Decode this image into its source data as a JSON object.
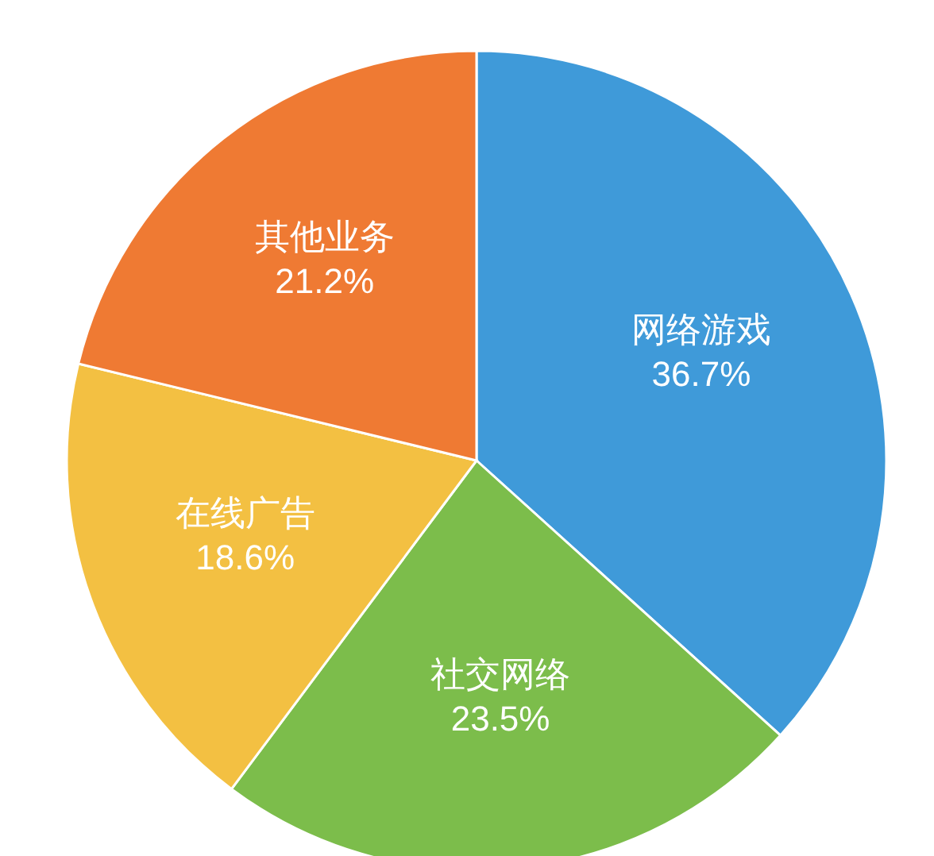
{
  "chart_data": {
    "type": "pie",
    "categories": [
      "网络游戏",
      "社交网络",
      "在线广告",
      "其他业务"
    ],
    "values": [
      36.7,
      23.5,
      18.6,
      21.2
    ],
    "colors": [
      "#3f9ad9",
      "#7cbd4b",
      "#f3c042",
      "#ef7a33"
    ],
    "value_labels": [
      "36.7%",
      "23.5%",
      "18.6%",
      "21.2%"
    ]
  }
}
